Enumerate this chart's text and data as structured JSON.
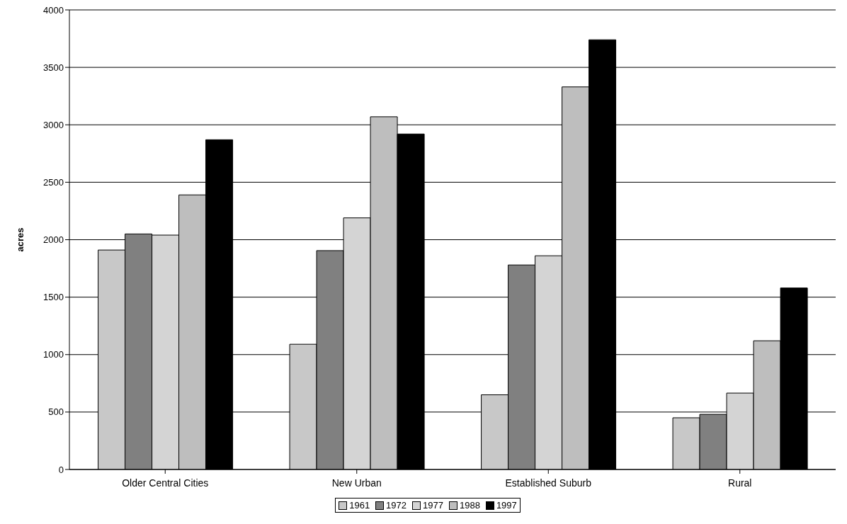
{
  "chart_data": {
    "type": "bar",
    "ylabel": "acres",
    "categories": [
      "Older Central Cities",
      "New Urban",
      "Established Suburb",
      "Rural"
    ],
    "series": [
      {
        "name": "1961",
        "color": "#c8c8c8",
        "values": [
          1910,
          1090,
          650,
          450
        ]
      },
      {
        "name": "1972",
        "color": "#808080",
        "values": [
          2050,
          1905,
          1780,
          480
        ]
      },
      {
        "name": "1977",
        "color": "#d4d4d4",
        "values": [
          2040,
          2190,
          1860,
          665
        ]
      },
      {
        "name": "1988",
        "color": "#bebebe",
        "values": [
          2390,
          3070,
          3330,
          1120
        ]
      },
      {
        "name": "1997",
        "color": "#000000",
        "values": [
          2870,
          2920,
          3740,
          1580
        ]
      }
    ],
    "ylim": [
      0,
      4000
    ],
    "yticks": [
      0,
      500,
      1000,
      1500,
      2000,
      2500,
      3000,
      3500,
      4000
    ],
    "grid": "y",
    "legend": "bottom"
  }
}
